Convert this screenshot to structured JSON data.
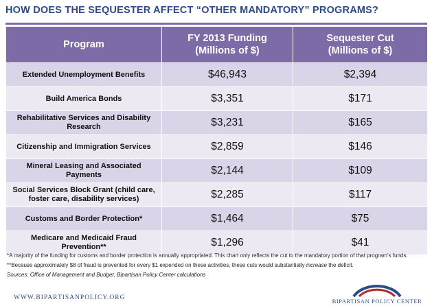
{
  "title": "HOW DOES THE SEQUESTER AFFECT “OTHER MANDATORY” PROGRAMS?",
  "chart_data": {
    "type": "table",
    "columns": [
      "Program",
      "FY 2013 Funding (Millions of $)",
      "Sequester Cut (Millions of $)"
    ],
    "header": {
      "program": "Program",
      "funding_line1": "FY 2013 Funding",
      "funding_line2": "(Millions of $)",
      "cut_line1": "Sequester Cut",
      "cut_line2": "(Millions of $)"
    },
    "rows": [
      {
        "program": "Extended Unemployment Benefits",
        "funding": "$46,943",
        "cut": "$2,394"
      },
      {
        "program": "Build America Bonds",
        "funding": "$3,351",
        "cut": "$171"
      },
      {
        "program": "Rehabilitative Services and Disability Research",
        "funding": "$3,231",
        "cut": "$165"
      },
      {
        "program": "Citizenship and Immigration Services",
        "funding": "$2,859",
        "cut": "$146"
      },
      {
        "program": "Mineral Leasing and Associated Payments",
        "funding": "$2,144",
        "cut": "$109"
      },
      {
        "program": "Social Services Block Grant (child care, foster care, disability services)",
        "funding": "$2,285",
        "cut": "$117"
      },
      {
        "program": "Customs and Border Protection*",
        "funding": "$1,464",
        "cut": "$75"
      },
      {
        "program": "Medicare and Medicaid Fraud Prevention**",
        "funding": "$1,296",
        "cut": "$41"
      }
    ]
  },
  "notes": {
    "note1": "*A majority of the funding for customs and border protection is annually appropriated. This chart only reflects the cut to the mandatory portion of that program’s funds.",
    "note2_before": "**Because approximately $8 of fraud is prevented for every $1 expended on these activities, these cuts would substantially ",
    "note2_emph": "increase",
    "note2_after": " the deficit.",
    "sources": "Sources: Office of Management and Budget, Bipartisan Policy Center calculations"
  },
  "footer": {
    "url": "WWW.BIPARTISANPOLICY.ORG",
    "logo_text": "BIPARTISAN POLICY CENTER",
    "logo_colors": {
      "blue": "#2b4b8c",
      "red": "#b3282d"
    }
  },
  "colors": {
    "title": "#2b4b8c",
    "header_bg": "#7c6ba6",
    "row_dark": "#d9d4e7",
    "row_light": "#ece9f2"
  }
}
